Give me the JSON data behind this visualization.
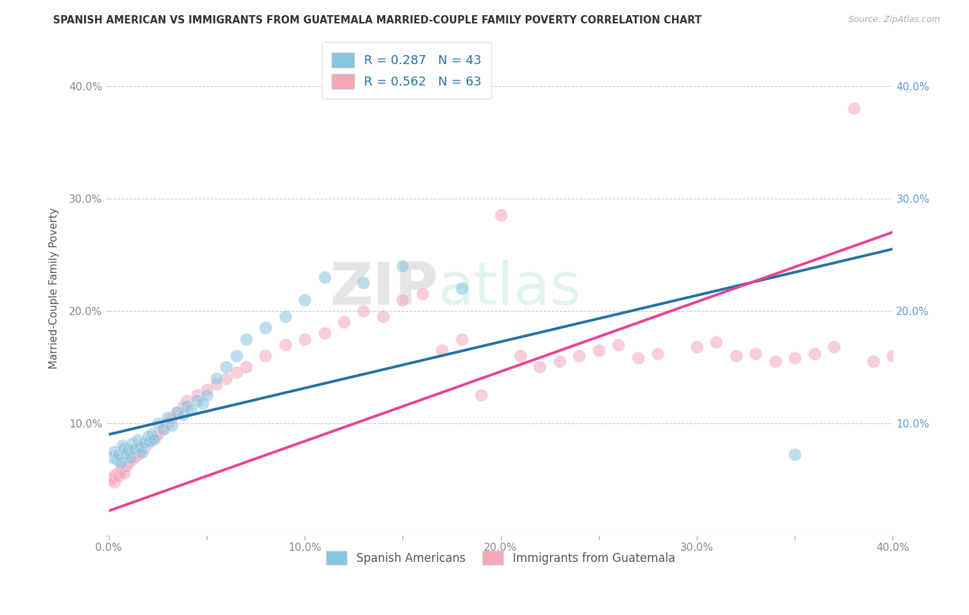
{
  "title": "SPANISH AMERICAN VS IMMIGRANTS FROM GUATEMALA MARRIED-COUPLE FAMILY POVERTY CORRELATION CHART",
  "source": "Source: ZipAtlas.com",
  "ylabel": "Married-Couple Family Poverty",
  "xlim": [
    0.0,
    0.4
  ],
  "ylim": [
    0.0,
    0.44
  ],
  "yticks": [
    0.0,
    0.1,
    0.2,
    0.3,
    0.4
  ],
  "ytick_labels_left": [
    "",
    "10.0%",
    "20.0%",
    "30.0%",
    "40.0%"
  ],
  "ytick_labels_right": [
    "",
    "10.0%",
    "20.0%",
    "30.0%",
    "40.0%"
  ],
  "xtick_labels": [
    "0.0%",
    "",
    "10.0%",
    "",
    "20.0%",
    "",
    "30.0%",
    "",
    "40.0%"
  ],
  "xticks": [
    0.0,
    0.05,
    0.1,
    0.15,
    0.2,
    0.25,
    0.3,
    0.35,
    0.4
  ],
  "color_blue": "#89c4e1",
  "color_pink": "#f4a7b9",
  "line_blue": "#2471a3",
  "line_pink": "#e84393",
  "watermark_zip": "ZIP",
  "watermark_atlas": "atlas",
  "background_color": "#ffffff",
  "grid_color": "#bbbbbb",
  "blue_x": [
    0.002,
    0.003,
    0.004,
    0.005,
    0.006,
    0.007,
    0.008,
    0.009,
    0.01,
    0.011,
    0.012,
    0.013,
    0.015,
    0.016,
    0.017,
    0.018,
    0.02,
    0.021,
    0.022,
    0.023,
    0.025,
    0.028,
    0.03,
    0.032,
    0.035,
    0.038,
    0.04,
    0.042,
    0.045,
    0.048,
    0.05,
    0.055,
    0.06,
    0.065,
    0.07,
    0.08,
    0.09,
    0.1,
    0.11,
    0.13,
    0.15,
    0.18,
    0.35
  ],
  "blue_y": [
    0.07,
    0.075,
    0.068,
    0.072,
    0.065,
    0.08,
    0.078,
    0.073,
    0.076,
    0.069,
    0.082,
    0.077,
    0.085,
    0.079,
    0.074,
    0.083,
    0.088,
    0.084,
    0.09,
    0.086,
    0.1,
    0.095,
    0.105,
    0.098,
    0.11,
    0.108,
    0.115,
    0.112,
    0.12,
    0.118,
    0.125,
    0.14,
    0.15,
    0.16,
    0.175,
    0.185,
    0.195,
    0.21,
    0.23,
    0.225,
    0.24,
    0.22,
    0.072
  ],
  "pink_x": [
    0.001,
    0.002,
    0.003,
    0.004,
    0.005,
    0.006,
    0.007,
    0.008,
    0.009,
    0.01,
    0.012,
    0.013,
    0.015,
    0.016,
    0.018,
    0.02,
    0.022,
    0.024,
    0.025,
    0.028,
    0.03,
    0.032,
    0.035,
    0.038,
    0.04,
    0.045,
    0.05,
    0.055,
    0.06,
    0.065,
    0.07,
    0.08,
    0.09,
    0.1,
    0.11,
    0.12,
    0.13,
    0.14,
    0.15,
    0.16,
    0.17,
    0.18,
    0.19,
    0.2,
    0.21,
    0.22,
    0.23,
    0.24,
    0.25,
    0.26,
    0.27,
    0.28,
    0.3,
    0.31,
    0.32,
    0.33,
    0.34,
    0.35,
    0.36,
    0.37,
    0.38,
    0.39,
    0.4
  ],
  "pink_y": [
    0.05,
    0.052,
    0.048,
    0.055,
    0.053,
    0.058,
    0.06,
    0.056,
    0.062,
    0.065,
    0.068,
    0.07,
    0.072,
    0.075,
    0.078,
    0.082,
    0.085,
    0.088,
    0.09,
    0.095,
    0.1,
    0.105,
    0.11,
    0.115,
    0.12,
    0.125,
    0.13,
    0.135,
    0.14,
    0.145,
    0.15,
    0.16,
    0.17,
    0.175,
    0.18,
    0.19,
    0.2,
    0.195,
    0.21,
    0.215,
    0.165,
    0.175,
    0.125,
    0.285,
    0.16,
    0.15,
    0.155,
    0.16,
    0.165,
    0.17,
    0.158,
    0.162,
    0.168,
    0.172,
    0.16,
    0.162,
    0.155,
    0.158,
    0.162,
    0.168,
    0.38,
    0.155,
    0.16
  ]
}
